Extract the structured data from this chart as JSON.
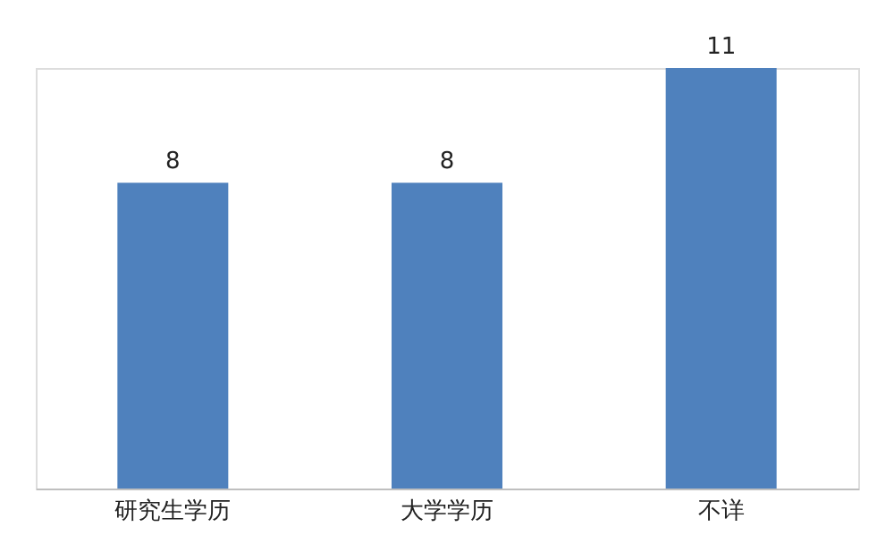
{
  "chart_data": {
    "type": "bar",
    "categories": [
      "研究生学历",
      "大学学历",
      "不详"
    ],
    "values": [
      8,
      8,
      11
    ],
    "color": "#4f81bd",
    "data_labels": true
  }
}
